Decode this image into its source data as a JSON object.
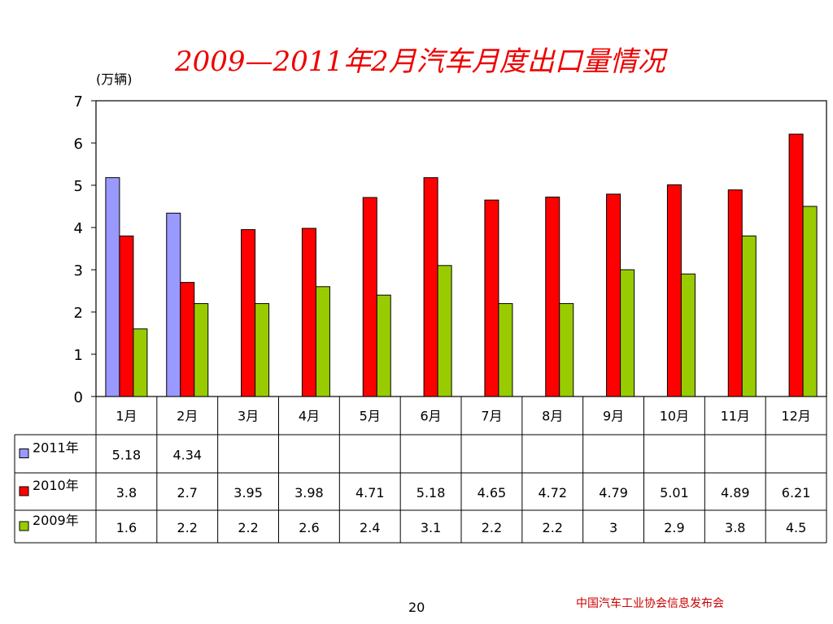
{
  "slide": {
    "title": "2009—2011年2月汽车月度出口量情况",
    "unit_label": "(万辆)",
    "page_number": "20",
    "footer": "中国汽车工业协会信息发布会"
  },
  "chart_data": {
    "type": "bar",
    "title": "2009—2011年2月汽车月度出口量情况",
    "ylabel": "(万辆)",
    "ylim": [
      0,
      7
    ],
    "yticks": [
      "0",
      "1",
      "2",
      "3",
      "4",
      "5",
      "6",
      "7"
    ],
    "categories": [
      "1月",
      "2月",
      "3月",
      "4月",
      "5月",
      "6月",
      "7月",
      "8月",
      "9月",
      "10月",
      "11月",
      "12月"
    ],
    "series": [
      {
        "name": "2011年",
        "color": "#9999ff",
        "values": [
          5.18,
          4.34,
          null,
          null,
          null,
          null,
          null,
          null,
          null,
          null,
          null,
          null
        ],
        "labels": [
          "5.18",
          "4.34",
          "",
          "",
          "",
          "",
          "",
          "",
          "",
          "",
          "",
          ""
        ]
      },
      {
        "name": "2010年",
        "color": "#ff0000",
        "values": [
          3.8,
          2.7,
          3.95,
          3.98,
          4.71,
          5.18,
          4.65,
          4.72,
          4.79,
          5.01,
          4.89,
          6.21
        ],
        "labels": [
          "3.8",
          "2.7",
          "3.95",
          "3.98",
          "4.71",
          "5.18",
          "4.65",
          "4.72",
          "4.79",
          "5.01",
          "4.89",
          "6.21"
        ]
      },
      {
        "name": "2009年",
        "color": "#99cc00",
        "values": [
          1.6,
          2.2,
          2.2,
          2.6,
          2.4,
          3.1,
          2.2,
          2.2,
          3,
          2.9,
          3.8,
          4.5
        ],
        "labels": [
          "1.6",
          "2.2",
          "2.2",
          "2.6",
          "2.4",
          "3.1",
          "2.2",
          "2.2",
          "3",
          "2.9",
          "3.8",
          "4.5"
        ]
      }
    ],
    "grid": false,
    "legend_placement": "data-table-left"
  }
}
